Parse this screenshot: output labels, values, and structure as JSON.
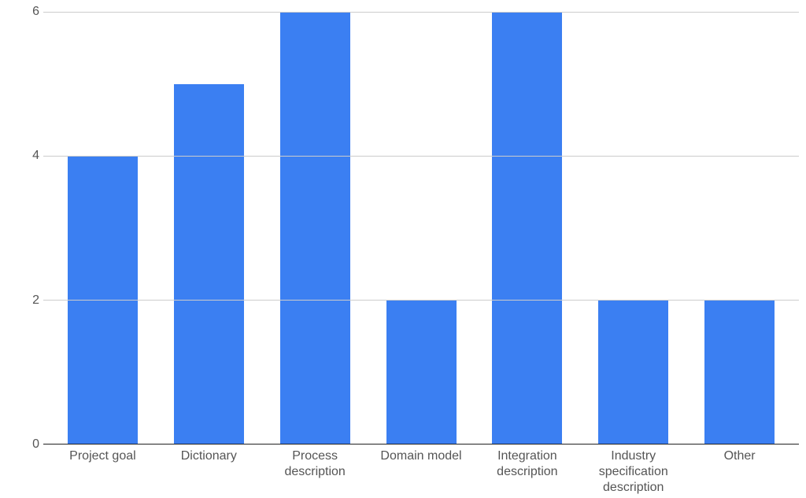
{
  "chart": {
    "type": "bar",
    "categories": [
      "Project goal",
      "Dictionary",
      "Process description",
      "Domain model",
      "Integration description",
      "Industry specification description",
      "Other"
    ],
    "values": [
      4,
      5,
      6,
      2,
      6,
      2,
      2
    ],
    "bar_color": "#3b7ff2",
    "ylim": [
      0,
      6
    ],
    "yticks": [
      0,
      2,
      4,
      6
    ],
    "background_color": "#ffffff",
    "grid_color": "#cccccc",
    "axis_line_color": "#222222",
    "label_color": "#555555",
    "label_fontsize": 16,
    "bar_width": 0.66
  }
}
